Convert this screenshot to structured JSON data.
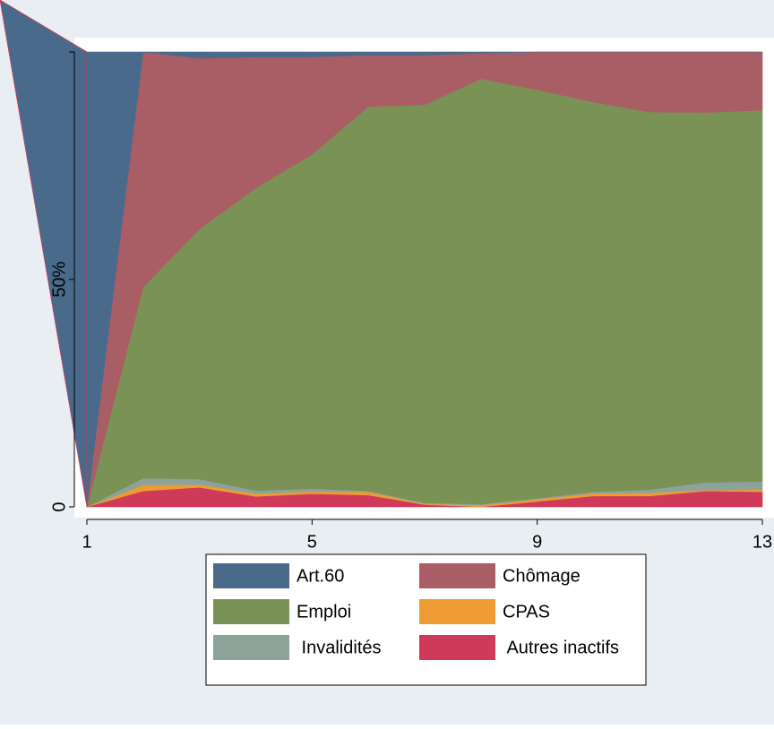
{
  "chart_data": {
    "type": "area",
    "stacked": true,
    "y_axis": {
      "tick_values": [
        0,
        50
      ],
      "tick_labels": [
        "0",
        "50%"
      ]
    },
    "x_axis": {
      "tick_values": [
        1,
        5,
        9,
        13
      ],
      "tick_labels": [
        "1",
        "5",
        "9",
        "13"
      ]
    },
    "xlim": [
      1,
      13
    ],
    "ylim": [
      0,
      100
    ],
    "x": [
      1,
      2,
      3,
      4,
      5,
      6,
      7,
      8,
      9,
      10,
      11,
      12,
      13
    ],
    "series": [
      {
        "name": "Autres inactifs",
        "color": "#cf3a5a",
        "values": [
          0,
          3.5,
          4.3,
          2.3,
          2.9,
          2.6,
          0.5,
          0,
          1.2,
          2.4,
          2.4,
          3.5,
          3.3
        ]
      },
      {
        "name": "CPAS",
        "color": "#ee9b33",
        "values": [
          0,
          1.3,
          0.6,
          0.6,
          0.5,
          0.7,
          0.2,
          0.4,
          0.5,
          0.6,
          0.7,
          0.2,
          0.5
        ]
      },
      {
        "name": "Invalidités",
        "color": "#8da39a",
        "values": [
          0,
          1.5,
          1.2,
          0.7,
          0.6,
          0.2,
          0.2,
          0.2,
          0.2,
          0.3,
          0.7,
          1.7,
          1.8
        ]
      },
      {
        "name": "Emploi",
        "color": "#7a9256",
        "values": [
          0,
          42,
          55,
          66.5,
          73.5,
          84.5,
          87.5,
          93.5,
          89.8,
          85.7,
          83,
          81.3,
          81.6
        ]
      },
      {
        "name": "Chômage",
        "color": "#a85e64",
        "values": [
          0,
          51.7,
          37.5,
          28.8,
          21.4,
          11.3,
          10.9,
          5.6,
          8.3,
          11.0,
          13.2,
          13.3,
          12.8
        ]
      },
      {
        "name": "Art.60",
        "color": "#4a6a8c",
        "values": [
          100,
          0,
          1.4,
          1.1,
          1.1,
          0.7,
          0.7,
          0.3,
          0,
          0,
          0,
          0,
          0
        ]
      }
    ],
    "legend": {
      "position": "bottom",
      "columns": 2,
      "entries": [
        {
          "label": "Art.60",
          "color": "#4a6a8c"
        },
        {
          "label": "Chômage",
          "color": "#a85e64"
        },
        {
          "label": "Emploi",
          "color": "#7a9256"
        },
        {
          "label": "CPAS",
          "color": "#ee9b33"
        },
        {
          "label": " Invalidités",
          "color": "#8da39a"
        },
        {
          "label": " Autres inactifs",
          "color": "#cf3a5a"
        }
      ]
    },
    "colors": {
      "outer_background": "#e8eef1",
      "plot_background": "#ffffff",
      "axis": "#000000",
      "gridline": "#e8eef1"
    }
  }
}
